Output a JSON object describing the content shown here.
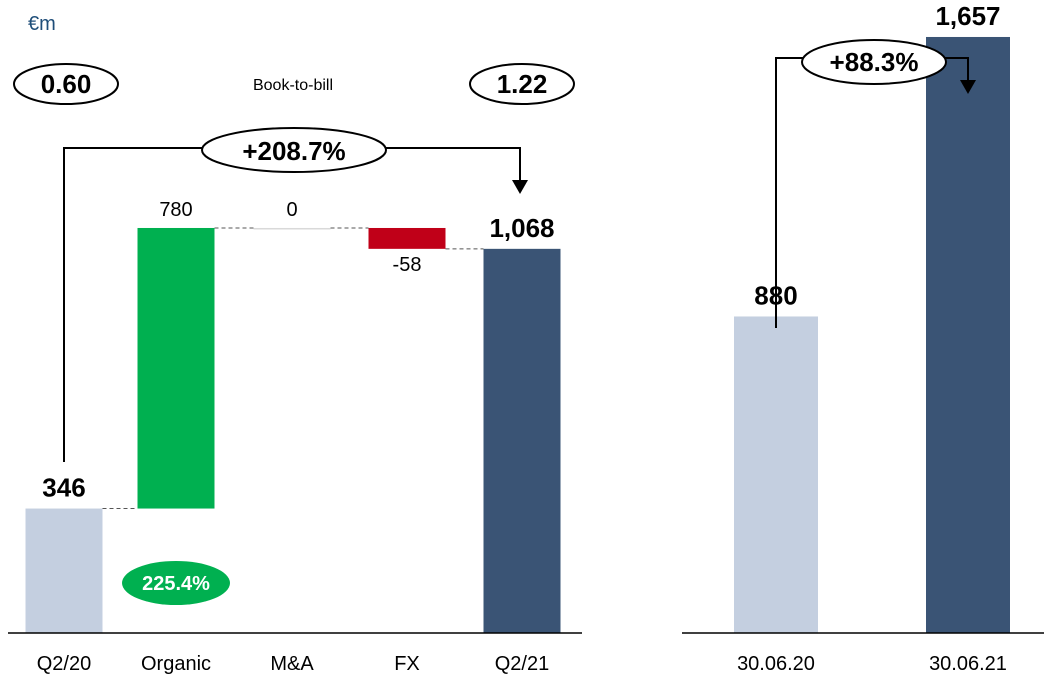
{
  "unit_label": "€m",
  "book_to_bill": {
    "label": "Book-to-bill",
    "left_value": "0.60",
    "right_value": "1.22"
  },
  "organic_growth_badge": "225.4%",
  "colors": {
    "light": "#c4cfe0",
    "dark": "#3a5475",
    "positive": "#00b050",
    "negative": "#c00018",
    "connector": "#000000"
  },
  "chart_data": [
    {
      "type": "bar",
      "subtype": "waterfall",
      "categories": [
        "Q2/20",
        "Organic",
        "M&A",
        "FX",
        "Q2/21"
      ],
      "values": [
        346,
        780,
        0,
        -58,
        1068
      ],
      "value_labels": [
        "346",
        "780",
        "0",
        "-58",
        "1,068"
      ],
      "kinds": [
        "total",
        "delta",
        "delta",
        "delta",
        "total"
      ],
      "change_label": "+208.7%",
      "ylim": [
        0,
        1750
      ]
    },
    {
      "type": "bar",
      "categories": [
        "30.06.20",
        "30.06.21"
      ],
      "values": [
        880,
        1657
      ],
      "value_labels": [
        "880",
        "1,657"
      ],
      "change_label": "+88.3%",
      "ylim": [
        0,
        1750
      ]
    }
  ]
}
